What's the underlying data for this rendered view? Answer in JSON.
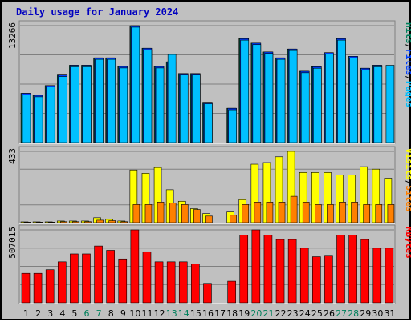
{
  "title": "Daily usage for January 2024",
  "colors": {
    "background": "#c0c0c0",
    "hits": "#00805c",
    "files": "#0040ff",
    "pages": "#00c0ff",
    "visits": "#ffff00",
    "sites": "#ff8000",
    "kbytes": "#ff0000",
    "weekday_label": "#000000",
    "weekend_label": "#00805c",
    "title": "#0000c0"
  },
  "chart_data": {
    "type": "bar",
    "categories": [
      "1",
      "2",
      "3",
      "4",
      "5",
      "6",
      "7",
      "8",
      "9",
      "10",
      "11",
      "12",
      "13",
      "14",
      "15",
      "16",
      "17",
      "18",
      "19",
      "20",
      "21",
      "22",
      "23",
      "24",
      "25",
      "26",
      "27",
      "28",
      "29",
      "30",
      "31"
    ],
    "weekend_days": [
      "6",
      "7",
      "13",
      "14",
      "20",
      "21",
      "27",
      "28"
    ],
    "panels": [
      {
        "id": "hits-files-pages",
        "max_label": "13266",
        "ymax": 13266,
        "legend": [
          {
            "text": "Hits",
            "color": "#00805c"
          },
          {
            "text": "/",
            "color": "#000000"
          },
          {
            "text": "Files",
            "color": "#0040ff"
          },
          {
            "text": "/",
            "color": "#000000"
          },
          {
            "text": "Pages",
            "color": "#00c0ff"
          }
        ],
        "series": [
          {
            "name": "Hits",
            "values": [
              5590,
              5360,
              6470,
              7660,
              8770,
              8770,
              9610,
              9610,
              8630,
              13260,
              10700,
              8630,
              9160,
              7830,
              7830,
              4570,
              0,
              3890,
              11790,
              11280,
              10280,
              9610,
              10610,
              8090,
              8600,
              10200,
              11790,
              9780,
              8430,
              8770,
              0
            ]
          },
          {
            "name": "Files",
            "values": [
              5590,
              5360,
              6470,
              7660,
              8770,
              8770,
              9610,
              9610,
              8630,
              13260,
              10700,
              8630,
              9160,
              7830,
              7830,
              4570,
              0,
              3890,
              11790,
              11280,
              10280,
              9610,
              10610,
              8090,
              8600,
              10200,
              11790,
              9780,
              8430,
              8770,
              0
            ]
          },
          {
            "name": "Pages",
            "values": [
              5420,
              5190,
              6300,
              7490,
              8600,
              8600,
              9440,
              9440,
              8460,
              13090,
              10530,
              8460,
              9990,
              7660,
              7660,
              4400,
              0,
              3720,
              11620,
              11110,
              10110,
              9440,
              10440,
              7920,
              8430,
              10030,
              11620,
              9610,
              8260,
              8600,
              8770
            ]
          }
        ]
      },
      {
        "id": "visits-sites",
        "max_label": "433",
        "ymax": 433,
        "legend": [
          {
            "text": "Visits",
            "color": "#ffff00"
          },
          {
            "text": "/",
            "color": "#000000"
          },
          {
            "text": "Sites",
            "color": "#ff8000"
          }
        ],
        "series": [
          {
            "name": "Visits",
            "values": [
              5,
              5,
              5,
              10,
              10,
              10,
              30,
              20,
              10,
              320,
              300,
              335,
              200,
              130,
              85,
              55,
              0,
              65,
              140,
              355,
              365,
              400,
              433,
              305,
              305,
              305,
              290,
              290,
              340,
              325,
              270
            ]
          },
          {
            "name": "Sites",
            "values": [
              3,
              3,
              3,
              6,
              6,
              6,
              15,
              12,
              6,
              110,
              110,
              125,
              120,
              110,
              80,
              40,
              0,
              45,
              110,
              125,
              125,
              125,
              160,
              125,
              110,
              110,
              125,
              125,
              110,
              110,
              110
            ]
          }
        ]
      },
      {
        "id": "kbytes",
        "max_label": "507015",
        "ymax": 507015,
        "legend": [
          {
            "text": "KBytes",
            "color": "#ff0000"
          }
        ],
        "series": [
          {
            "name": "KBytes",
            "values": [
              205000,
              205000,
              230000,
              285000,
              340000,
              340000,
              395000,
              365000,
              305000,
              507015,
              355000,
              285000,
              285000,
              285000,
              270000,
              135000,
              0,
              150000,
              470000,
              507015,
              470000,
              440000,
              440000,
              380000,
              320000,
              330000,
              470000,
              470000,
              440000,
              380000,
              380000
            ]
          }
        ]
      }
    ]
  }
}
